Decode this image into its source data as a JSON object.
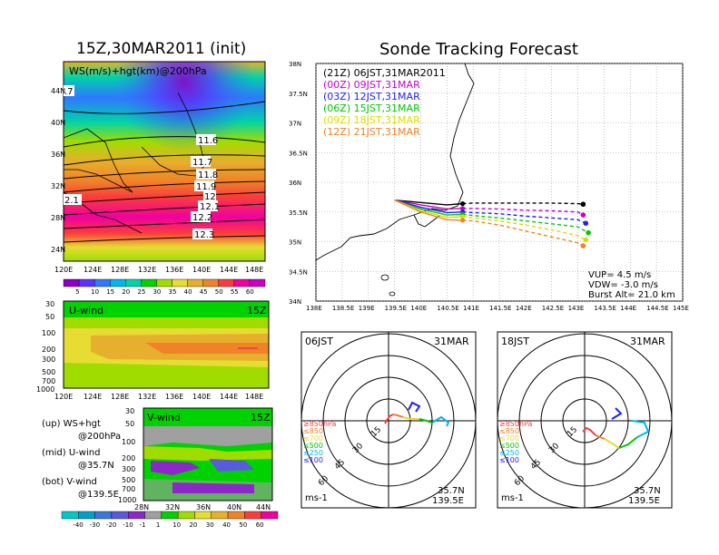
{
  "titles": {
    "init_time": "15Z,30MAR2011 (init)",
    "forecast": "Sonde Tracking Forecast"
  },
  "map_panel": {
    "label": "WS(m/s)+hgt(km)@200hPa",
    "lon_ticks": [
      "120E",
      "124E",
      "128E",
      "132E",
      "136E",
      "140E",
      "144E",
      "148E"
    ],
    "lat_ticks": [
      "44N",
      "40N",
      "36N",
      "32N",
      "28N",
      "24N"
    ],
    "contour_labels": [
      "11.6",
      "11.7",
      "11.8",
      "11.9",
      "12",
      "12.1",
      "12.2",
      "12.3"
    ],
    "edge_labels": [
      ".7",
      "2.1"
    ]
  },
  "colorbar_ws": {
    "labels": [
      "5",
      "10",
      "15",
      "20",
      "25",
      "30",
      "35",
      "40",
      "45",
      "50",
      "55",
      "60"
    ],
    "colors": [
      "#8a00c8",
      "#5a32ff",
      "#2f78ff",
      "#00b4f0",
      "#00d2aa",
      "#00d200",
      "#a0dc00",
      "#e6dc32",
      "#e6af2d",
      "#f08228",
      "#fa3c3c",
      "#f000a0",
      "#c800c8"
    ]
  },
  "u_panel": {
    "label": "U-wind",
    "time": "15Z",
    "pres_ticks": [
      "30",
      "50",
      "100",
      "200",
      "300",
      "500",
      "700",
      "1000"
    ],
    "lon_ticks": [
      "120E",
      "124E",
      "128E",
      "132E",
      "136E",
      "140E",
      "144E",
      "148E"
    ]
  },
  "v_panel": {
    "label": "V-wind",
    "time": "15Z",
    "pres_ticks": [
      "30",
      "50",
      "100",
      "200",
      "300",
      "500",
      "700",
      "1000"
    ],
    "lat_ticks": [
      "28N",
      "32N",
      "36N",
      "40N",
      "44N"
    ]
  },
  "colorbar_uv": {
    "labels": [
      "-40",
      "-30",
      "-20",
      "-10",
      "-1",
      "1",
      "10",
      "20",
      "30",
      "40",
      "50",
      "60"
    ],
    "colors": [
      "#00c8c8",
      "#00a0c8",
      "#3c78dc",
      "#5a5adc",
      "#8c28c8",
      "#a0a0a0",
      "#00d200",
      "#a0dc00",
      "#e6dc32",
      "#e6af2d",
      "#f08228",
      "#fa3c3c",
      "#f000a0"
    ]
  },
  "legend_text": {
    "up": "(up) WS+hgt",
    "up2": "@200hPa",
    "mid": "(mid) U-wind",
    "mid2": "@35.7N",
    "bot": "(bot) V-wind",
    "bot2": "@139.5E"
  },
  "track_panel": {
    "lat_ticks": [
      "38N",
      "37.5N",
      "37N",
      "36.5N",
      "36N",
      "35.5N",
      "35N",
      "34.5N",
      "34N"
    ],
    "lon_ticks": [
      "138E",
      "138.5E",
      "139E",
      "139.5E",
      "140E",
      "140.5E",
      "141E",
      "141.5E",
      "142E",
      "142.5E",
      "143E",
      "143.5E",
      "144E",
      "144.5E",
      "145E"
    ],
    "params": {
      "vup": "VUP= 4.5 m/s",
      "vdw": "VDW= -3.0 m/s",
      "burst": "Burst Alt= 21.0 km"
    }
  },
  "chart_data": {
    "type": "line",
    "title": "Sonde Tracking Forecast",
    "xlim": [
      138,
      145
    ],
    "ylim": [
      34,
      38
    ],
    "series": [
      {
        "name": "(21Z) 06JST,31MAR2011",
        "color": "#000000",
        "x": [
          139.5,
          140.0,
          140.5,
          140.8,
          141.0,
          141.5,
          142.0,
          142.5,
          143.0,
          143.1
        ],
        "y": [
          35.7,
          35.66,
          35.62,
          35.64,
          35.65,
          35.65,
          35.65,
          35.65,
          35.64,
          35.63
        ]
      },
      {
        "name": "(00Z) 09JST,31MAR",
        "color": "#c800c8",
        "x": [
          139.5,
          140.0,
          140.5,
          140.8,
          141.0,
          141.5,
          142.0,
          142.5,
          143.0,
          143.1
        ],
        "y": [
          35.7,
          35.62,
          35.55,
          35.56,
          35.56,
          35.55,
          35.53,
          35.52,
          35.5,
          35.45
        ]
      },
      {
        "name": "(03Z) 12JST,31MAR",
        "color": "#1e1eff",
        "x": [
          139.5,
          140.0,
          140.5,
          140.8,
          141.0,
          141.5,
          142.0,
          142.5,
          143.0,
          143.15
        ],
        "y": [
          35.7,
          35.58,
          35.49,
          35.5,
          35.49,
          35.47,
          35.43,
          35.4,
          35.37,
          35.31
        ]
      },
      {
        "name": "(06Z) 15JST,31MAR",
        "color": "#00c800",
        "x": [
          139.5,
          140.0,
          140.5,
          140.8,
          141.0,
          141.5,
          142.0,
          142.5,
          143.0,
          143.2
        ],
        "y": [
          35.7,
          35.55,
          35.45,
          35.46,
          35.44,
          35.4,
          35.35,
          35.3,
          35.25,
          35.15
        ]
      },
      {
        "name": "(09Z) 18JST,31MAR",
        "color": "#dcdc00",
        "x": [
          139.5,
          140.0,
          140.5,
          140.8,
          141.0,
          141.5,
          142.0,
          142.5,
          143.0,
          143.15
        ],
        "y": [
          35.7,
          35.52,
          35.41,
          35.42,
          35.4,
          35.35,
          35.28,
          35.2,
          35.1,
          35.03
        ]
      },
      {
        "name": "(12Z) 21JST,31MAR",
        "color": "#f08228",
        "x": [
          139.5,
          140.0,
          140.5,
          140.8,
          141.0,
          141.5,
          142.0,
          142.5,
          143.0,
          143.1
        ],
        "y": [
          35.7,
          35.5,
          35.37,
          35.36,
          35.35,
          35.28,
          35.18,
          35.08,
          34.98,
          34.93
        ]
      }
    ]
  },
  "hodo_left": {
    "title": "06JST",
    "date": "31MAR",
    "ring_labels": [
      "15",
      "30",
      "45",
      "60"
    ],
    "legend": [
      "≥850hPa",
      "≤850",
      "≤700",
      "≤500",
      "≤250",
      "≤100"
    ],
    "loc1": "35.7N",
    "loc2": "139.5E",
    "unit": "ms-1"
  },
  "hodo_right": {
    "title": "18JST",
    "date": "31MAR",
    "ring_labels": [
      "15",
      "30",
      "45",
      "60"
    ],
    "legend": [
      "≥850hPa",
      "≤850",
      "≤700",
      "≤500",
      "≤250",
      "≤100"
    ],
    "loc1": "35.7N",
    "loc2": "139.5E",
    "unit": "ms-1"
  }
}
